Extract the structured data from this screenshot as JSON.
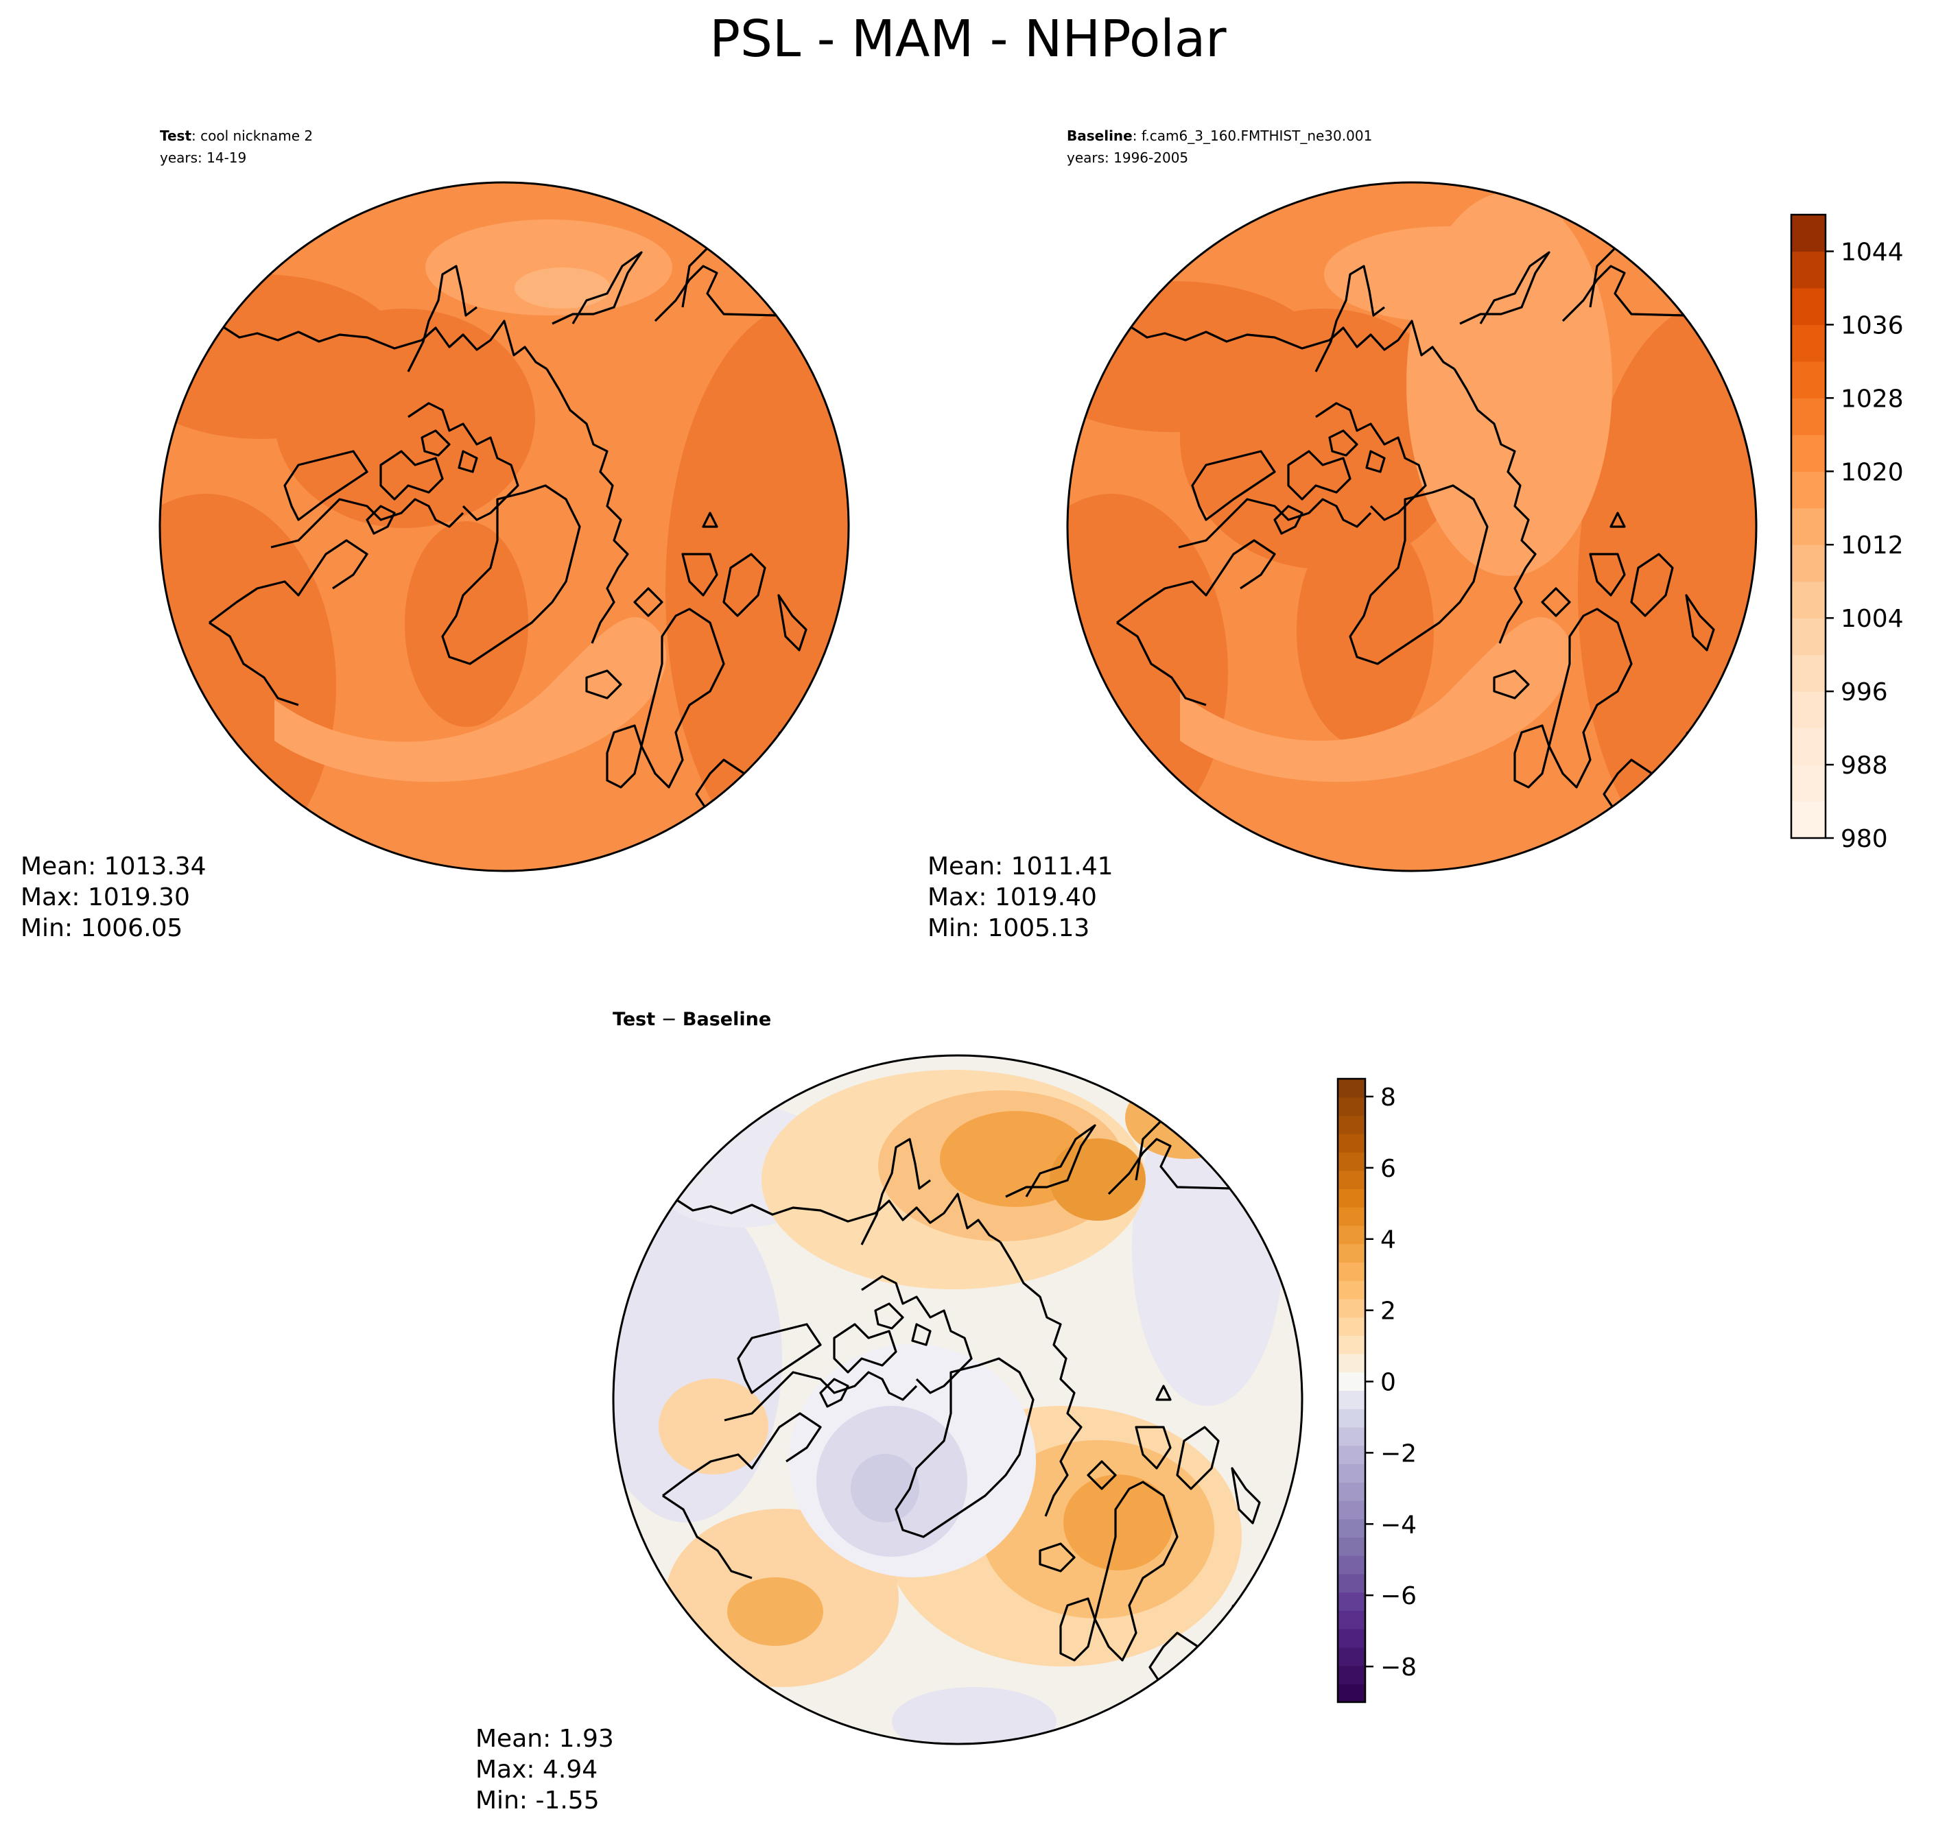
{
  "figure": {
    "title": "PSL - MAM - NHPolar"
  },
  "chart_data": [
    {
      "type": "heatmap",
      "panel": "test",
      "label_bold": "Test",
      "label_sep": ": ",
      "label_value": "cool nickname 2",
      "years": "years: 14-19",
      "stats": {
        "mean": "Mean: 1013.34",
        "max": "Max: 1019.30",
        "min": "Min: 1006.05"
      },
      "projection": "North Polar Stereographic",
      "colormap": "Oranges"
    },
    {
      "type": "heatmap",
      "panel": "baseline",
      "label_bold": "Baseline",
      "label_sep": ": ",
      "label_value": "f.cam6_3_160.FMTHIST_ne30.001",
      "years": "years: 1996-2005",
      "stats": {
        "mean": "Mean: 1011.41",
        "max": "Max: 1019.40",
        "min": "Min: 1005.13"
      },
      "projection": "North Polar Stereographic",
      "colormap": "Oranges",
      "colorbar": {
        "range": [
          980,
          1048
        ],
        "ticks": [
          980,
          988,
          996,
          1004,
          1012,
          1020,
          1028,
          1036,
          1044
        ],
        "tick_labels": [
          "980",
          "988",
          "996",
          "1004",
          "1012",
          "1020",
          "1028",
          "1036",
          "1044"
        ],
        "levels": 17,
        "color_low": "#fff5eb",
        "color_high": "#7f2704"
      }
    },
    {
      "type": "heatmap",
      "panel": "difference",
      "label_bold": "Test",
      "label_sep": " − ",
      "label_value": "Baseline",
      "stats": {
        "mean": "Mean:  1.93",
        "max": "Max:  4.94",
        "min": "Min: -1.55"
      },
      "projection": "North Polar Stereographic",
      "colormap": "PuOr_r",
      "colorbar": {
        "range": [
          -9,
          8.5
        ],
        "ticks": [
          -8,
          -6,
          -4,
          -2,
          0,
          2,
          4,
          6,
          8
        ],
        "tick_labels": [
          "−8",
          "−6",
          "−4",
          "−2",
          "0",
          "2",
          "4",
          "6",
          "8"
        ],
        "levels": 34,
        "color_low": "#2d004b",
        "color_high": "#7f3b08"
      }
    }
  ]
}
